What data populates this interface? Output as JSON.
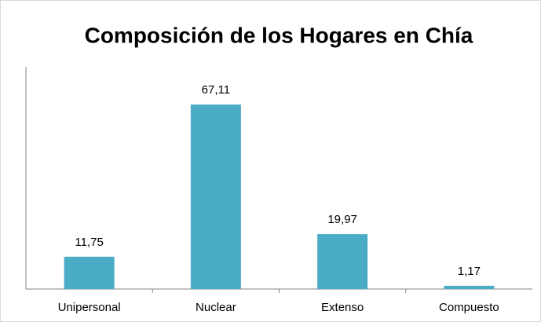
{
  "chart_data": {
    "type": "bar",
    "title": "Composición de los Hogares en Chía",
    "categories": [
      "Unipersonal",
      "Nuclear",
      "Extenso",
      "Compuesto"
    ],
    "values": [
      11.75,
      67.11,
      19.97,
      1.17
    ],
    "value_labels": [
      "11,75",
      "67,11",
      "19,97",
      "1,17"
    ],
    "color": "#4bacc6",
    "ylim": [
      0,
      80
    ]
  }
}
